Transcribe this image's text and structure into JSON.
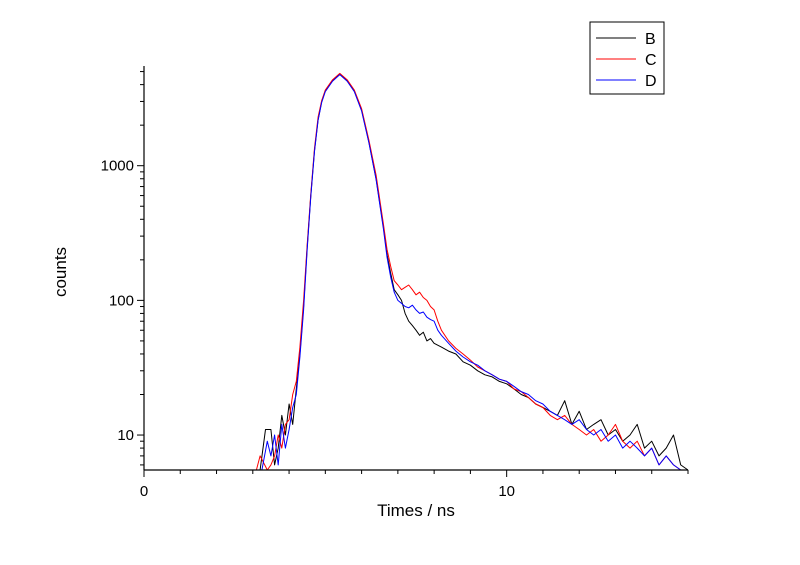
{
  "chart_data": {
    "type": "line",
    "title": "",
    "xlabel": "Times / ns",
    "ylabel": "counts",
    "x_scale": "linear",
    "y_scale": "log",
    "xlim": [
      0,
      15
    ],
    "ylim": [
      5.5,
      5500
    ],
    "x_ticks": [
      0,
      10
    ],
    "x_tick_labels": [
      "0",
      "10"
    ],
    "y_ticks": [
      10,
      100,
      1000
    ],
    "y_tick_labels": [
      "10",
      "100",
      "1000"
    ],
    "grid": false,
    "legend": {
      "position": "top-right",
      "entries": [
        "B",
        "C",
        "D"
      ]
    },
    "series": [
      {
        "name": "B",
        "color": "#000000",
        "x": [
          0,
          3.2,
          3.35,
          3.5,
          3.6,
          3.7,
          3.8,
          3.9,
          4.0,
          4.1,
          4.2,
          4.3,
          4.4,
          4.5,
          4.6,
          4.7,
          4.8,
          4.9,
          5.0,
          5.2,
          5.4,
          5.6,
          5.8,
          6.0,
          6.2,
          6.4,
          6.6,
          6.7,
          6.8,
          6.9,
          7.0,
          7.1,
          7.2,
          7.3,
          7.4,
          7.5,
          7.6,
          7.7,
          7.8,
          7.9,
          8.0,
          8.2,
          8.4,
          8.6,
          8.8,
          9.0,
          9.2,
          9.4,
          9.6,
          9.8,
          10.0,
          10.2,
          10.4,
          10.6,
          10.8,
          11.0,
          11.2,
          11.4,
          11.6,
          11.8,
          12.0,
          12.2,
          12.4,
          12.6,
          12.8,
          13.0,
          13.2,
          13.4,
          13.6,
          13.8,
          14.0,
          14.2,
          14.4,
          14.6,
          14.8,
          15.0
        ],
        "y": [
          5.5,
          5.5,
          11,
          11,
          6,
          8,
          14,
          10,
          17,
          12,
          22,
          40,
          90,
          250,
          600,
          1300,
          2200,
          3000,
          3600,
          4300,
          4800,
          4300,
          3600,
          2600,
          1500,
          800,
          350,
          220,
          160,
          120,
          110,
          100,
          80,
          70,
          65,
          60,
          55,
          58,
          50,
          52,
          48,
          45,
          42,
          40,
          35,
          33,
          30,
          28,
          27,
          25,
          24,
          22,
          20,
          19,
          17,
          16,
          15,
          14,
          18,
          12,
          15,
          11,
          12,
          13,
          10,
          11,
          9,
          10,
          12,
          8,
          9,
          7,
          8,
          10,
          6,
          5.5
        ]
      },
      {
        "name": "C",
        "color": "#ff0000",
        "x": [
          0,
          3.1,
          3.2,
          3.4,
          3.5,
          3.6,
          3.7,
          3.8,
          3.9,
          4.0,
          4.1,
          4.2,
          4.3,
          4.4,
          4.5,
          4.6,
          4.7,
          4.8,
          4.9,
          5.0,
          5.2,
          5.4,
          5.6,
          5.8,
          6.0,
          6.2,
          6.4,
          6.6,
          6.7,
          6.8,
          6.9,
          7.0,
          7.1,
          7.2,
          7.3,
          7.4,
          7.5,
          7.6,
          7.7,
          7.8,
          7.9,
          8.0,
          8.1,
          8.2,
          8.4,
          8.6,
          8.8,
          9.0,
          9.2,
          9.4,
          9.6,
          9.8,
          10.0,
          10.2,
          10.4,
          10.6,
          10.8,
          11.0,
          11.2,
          11.4,
          11.6,
          11.8,
          12.0,
          12.2,
          12.4,
          12.6,
          12.8,
          13.0,
          13.2,
          13.4,
          13.6,
          13.8,
          14.0,
          14.2,
          14.4,
          14.6,
          14.8,
          15.0
        ],
        "y": [
          5.5,
          5.5,
          7,
          5.5,
          6,
          7,
          10,
          8,
          12,
          13,
          20,
          25,
          45,
          100,
          260,
          620,
          1350,
          2300,
          3050,
          3650,
          4350,
          4850,
          4350,
          3650,
          2650,
          1550,
          850,
          370,
          240,
          180,
          140,
          130,
          120,
          125,
          130,
          120,
          110,
          115,
          105,
          100,
          90,
          85,
          70,
          60,
          50,
          44,
          40,
          36,
          32,
          30,
          28,
          26,
          25,
          22,
          21,
          19,
          17,
          16,
          14,
          13,
          14,
          12,
          11,
          10,
          11,
          9,
          10,
          12,
          9,
          8,
          9,
          7,
          8,
          6,
          7,
          6,
          5.5,
          5.5
        ]
      },
      {
        "name": "D",
        "color": "#0000ff",
        "x": [
          0,
          3.25,
          3.4,
          3.5,
          3.6,
          3.7,
          3.8,
          3.9,
          4.0,
          4.1,
          4.2,
          4.3,
          4.4,
          4.5,
          4.6,
          4.7,
          4.8,
          4.9,
          5.0,
          5.2,
          5.4,
          5.6,
          5.8,
          6.0,
          6.2,
          6.4,
          6.6,
          6.7,
          6.8,
          6.9,
          7.0,
          7.1,
          7.2,
          7.3,
          7.4,
          7.5,
          7.6,
          7.7,
          7.8,
          7.9,
          8.0,
          8.1,
          8.2,
          8.4,
          8.6,
          8.8,
          9.0,
          9.2,
          9.4,
          9.6,
          9.8,
          10.0,
          10.2,
          10.4,
          10.6,
          10.8,
          11.0,
          11.2,
          11.4,
          11.6,
          11.8,
          12.0,
          12.2,
          12.4,
          12.6,
          12.8,
          13.0,
          13.2,
          13.4,
          13.6,
          13.8,
          14.0,
          14.2,
          14.4,
          14.6,
          14.8,
          15.0
        ],
        "y": [
          5.5,
          5.5,
          9,
          7,
          10,
          6,
          12,
          8,
          11,
          16,
          20,
          38,
          85,
          240,
          590,
          1280,
          2180,
          2950,
          3550,
          4250,
          4750,
          4250,
          3550,
          2550,
          1480,
          790,
          340,
          210,
          150,
          115,
          100,
          95,
          90,
          88,
          92,
          85,
          80,
          82,
          75,
          72,
          70,
          60,
          55,
          48,
          42,
          38,
          35,
          33,
          30,
          28,
          26,
          25,
          23,
          21,
          20,
          18,
          17,
          15,
          14,
          13,
          12,
          13,
          11,
          10,
          11,
          9,
          10,
          8,
          9,
          8,
          7,
          8,
          6,
          7,
          6,
          5.5,
          5.5
        ]
      }
    ]
  }
}
